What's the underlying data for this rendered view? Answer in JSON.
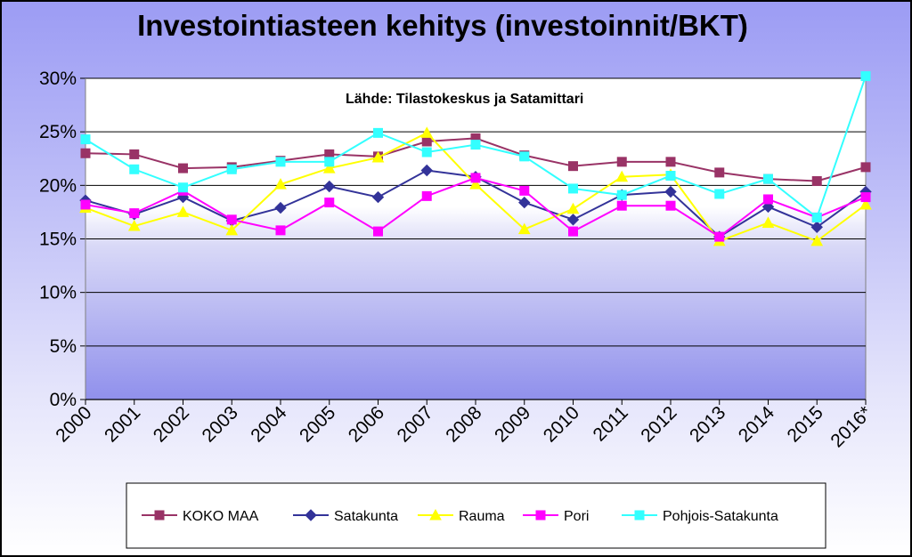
{
  "chart_data": {
    "type": "line",
    "title": "Investointiasteen kehitys (investoinnit/BKT)",
    "annotation": "Lähde:  Tilastokeskus  ja Satamittari",
    "x": [
      "2000",
      "2001",
      "2002",
      "2003",
      "2004",
      "2005",
      "2006",
      "2007",
      "2008",
      "2009",
      "2010",
      "2011",
      "2012",
      "2013",
      "2014",
      "2015",
      "2016*"
    ],
    "ylim": [
      0,
      30
    ],
    "yticks": [
      0,
      5,
      10,
      15,
      20,
      25,
      30
    ],
    "ytick_labels": [
      "0%",
      "5%",
      "10%",
      "15%",
      "20%",
      "25%",
      "30%"
    ],
    "grid": true,
    "legend_position": "bottom",
    "series": [
      {
        "name": "KOKO MAA",
        "color": "#993366",
        "marker": "square",
        "values": [
          23.0,
          22.9,
          21.6,
          21.7,
          22.3,
          22.9,
          22.7,
          24.1,
          24.4,
          22.8,
          21.8,
          22.2,
          22.2,
          21.2,
          20.6,
          20.4,
          21.7
        ]
      },
      {
        "name": "Satakunta",
        "color": "#333399",
        "marker": "diamond",
        "values": [
          18.6,
          17.3,
          18.9,
          16.7,
          17.9,
          19.9,
          18.9,
          21.4,
          20.8,
          18.4,
          16.8,
          19.1,
          19.4,
          15.2,
          18.0,
          16.1,
          19.4
        ]
      },
      {
        "name": "Rauma",
        "color": "#ffff00",
        "marker": "triangle",
        "values": [
          17.9,
          16.2,
          17.5,
          15.8,
          20.1,
          21.6,
          22.6,
          24.9,
          20.1,
          15.9,
          17.8,
          20.8,
          21.0,
          14.8,
          16.5,
          14.8,
          18.2
        ]
      },
      {
        "name": "Pori",
        "color": "#ff00ff",
        "marker": "square",
        "values": [
          18.2,
          17.4,
          19.5,
          16.8,
          15.8,
          18.4,
          15.7,
          19.0,
          20.7,
          19.5,
          15.7,
          18.1,
          18.1,
          15.2,
          18.7,
          17.0,
          18.9
        ]
      },
      {
        "name": "Pohjois-Satakunta",
        "color": "#33ffff",
        "marker": "square",
        "values": [
          24.3,
          21.5,
          19.8,
          21.5,
          22.2,
          22.2,
          24.9,
          23.1,
          23.8,
          22.7,
          19.7,
          19.1,
          20.9,
          19.2,
          20.6,
          17.0,
          30.2
        ]
      }
    ]
  }
}
